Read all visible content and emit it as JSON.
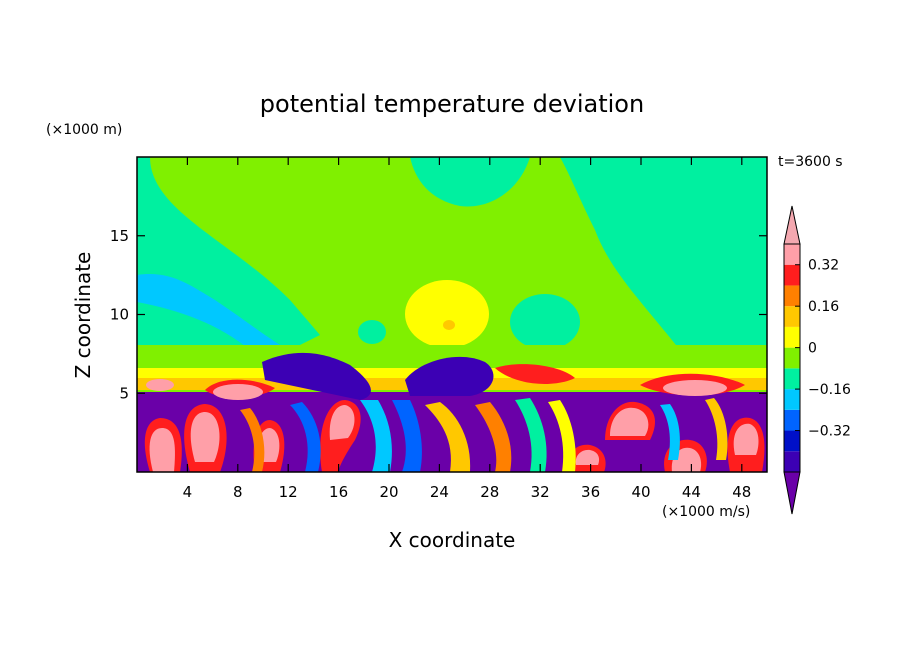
{
  "chart_data": {
    "type": "heatmap",
    "title": "potential temperature deviation",
    "xlabel": "X coordinate",
    "ylabel": "Z coordinate",
    "x_unit": "(×1000 m/s)",
    "y_unit": "(×1000 m)",
    "time_label": "t=3600 s",
    "xlim": [
      0,
      50
    ],
    "ylim": [
      0,
      20
    ],
    "x_ticks": [
      4,
      8,
      12,
      16,
      20,
      24,
      28,
      32,
      36,
      40,
      44,
      48
    ],
    "y_ticks": [
      5,
      10,
      15
    ],
    "colorbar": {
      "levels": [
        -0.48,
        -0.4,
        -0.32,
        -0.24,
        -0.16,
        -0.08,
        0,
        0.08,
        0.16,
        0.24,
        0.32,
        0.4
      ],
      "tick_values": [
        0.32,
        0.16,
        0,
        -0.16,
        -0.32
      ],
      "tick_labels": [
        "0.32",
        "0.16",
        "0",
        "−0.16",
        "−0.32"
      ],
      "colors": [
        "#6a00a8",
        "#3c00b4",
        "#0010c8",
        "#0064ff",
        "#00c8ff",
        "#00f0a0",
        "#80f000",
        "#ffff00",
        "#ffc800",
        "#ff8000",
        "#ff1e1e",
        "#ff9fa8",
        "#f4a8b0"
      ]
    }
  }
}
